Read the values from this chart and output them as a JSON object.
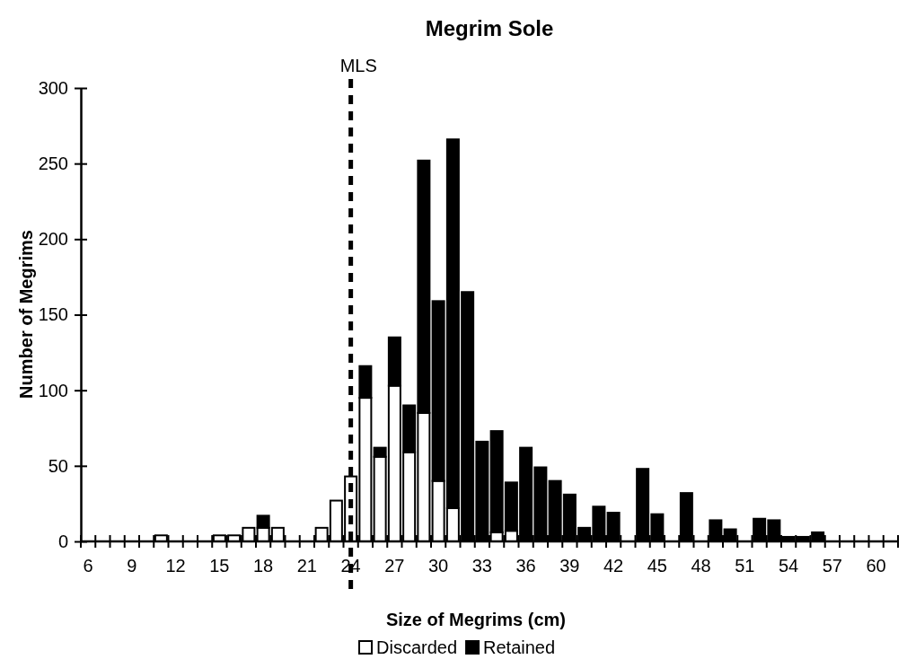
{
  "chart_data": {
    "type": "bar",
    "title": "Megrim Sole",
    "xlabel": "Size of Megrims (cm)",
    "ylabel": "Number of Megrims",
    "categories": [
      "6",
      null,
      null,
      "9",
      null,
      null,
      "12",
      null,
      null,
      "15",
      null,
      null,
      "18",
      null,
      null,
      "21",
      null,
      null,
      "24",
      null,
      null,
      "27",
      null,
      null,
      "30",
      null,
      null,
      "33",
      null,
      null,
      "36",
      null,
      null,
      "39",
      null,
      null,
      "42",
      null,
      null,
      "45",
      null,
      null,
      "48",
      null,
      null,
      "51",
      null,
      null,
      "54",
      null,
      null,
      "57",
      null,
      null,
      "60",
      null
    ],
    "stacked": true,
    "series": [
      {
        "name": "Discarded",
        "color": "#ffffff",
        "values": [
          0,
          0,
          0,
          0,
          0,
          4,
          0,
          0,
          0,
          4,
          4,
          9,
          9,
          9,
          0,
          0,
          9,
          27,
          43,
          95,
          56,
          103,
          59,
          85,
          40,
          22,
          0,
          0,
          6,
          7,
          0,
          0,
          0,
          0,
          0,
          0,
          0,
          0,
          0,
          0,
          0,
          0,
          0,
          0,
          0,
          0,
          0,
          0,
          0,
          0,
          0,
          0,
          0,
          0,
          0,
          0
        ]
      },
      {
        "name": "Retained",
        "color": "#000000",
        "values": [
          0,
          0,
          0,
          0,
          0,
          0,
          0,
          0,
          0,
          0,
          0,
          0,
          8,
          0,
          0,
          0,
          0,
          0,
          0,
          21,
          6,
          32,
          31,
          167,
          119,
          244,
          165,
          66,
          67,
          32,
          62,
          49,
          40,
          31,
          9,
          23,
          19,
          0,
          48,
          18,
          0,
          32,
          0,
          14,
          8,
          0,
          15,
          14,
          3,
          3,
          6,
          0,
          0,
          0,
          0,
          0
        ]
      }
    ],
    "ylim": [
      0,
      300
    ],
    "yticks": [
      0,
      50,
      100,
      150,
      200,
      250,
      300
    ],
    "ref_lines": [
      {
        "axis": "x",
        "value": "24",
        "label": "MLS",
        "line_style": "dashed"
      }
    ],
    "legend": "bottom"
  }
}
